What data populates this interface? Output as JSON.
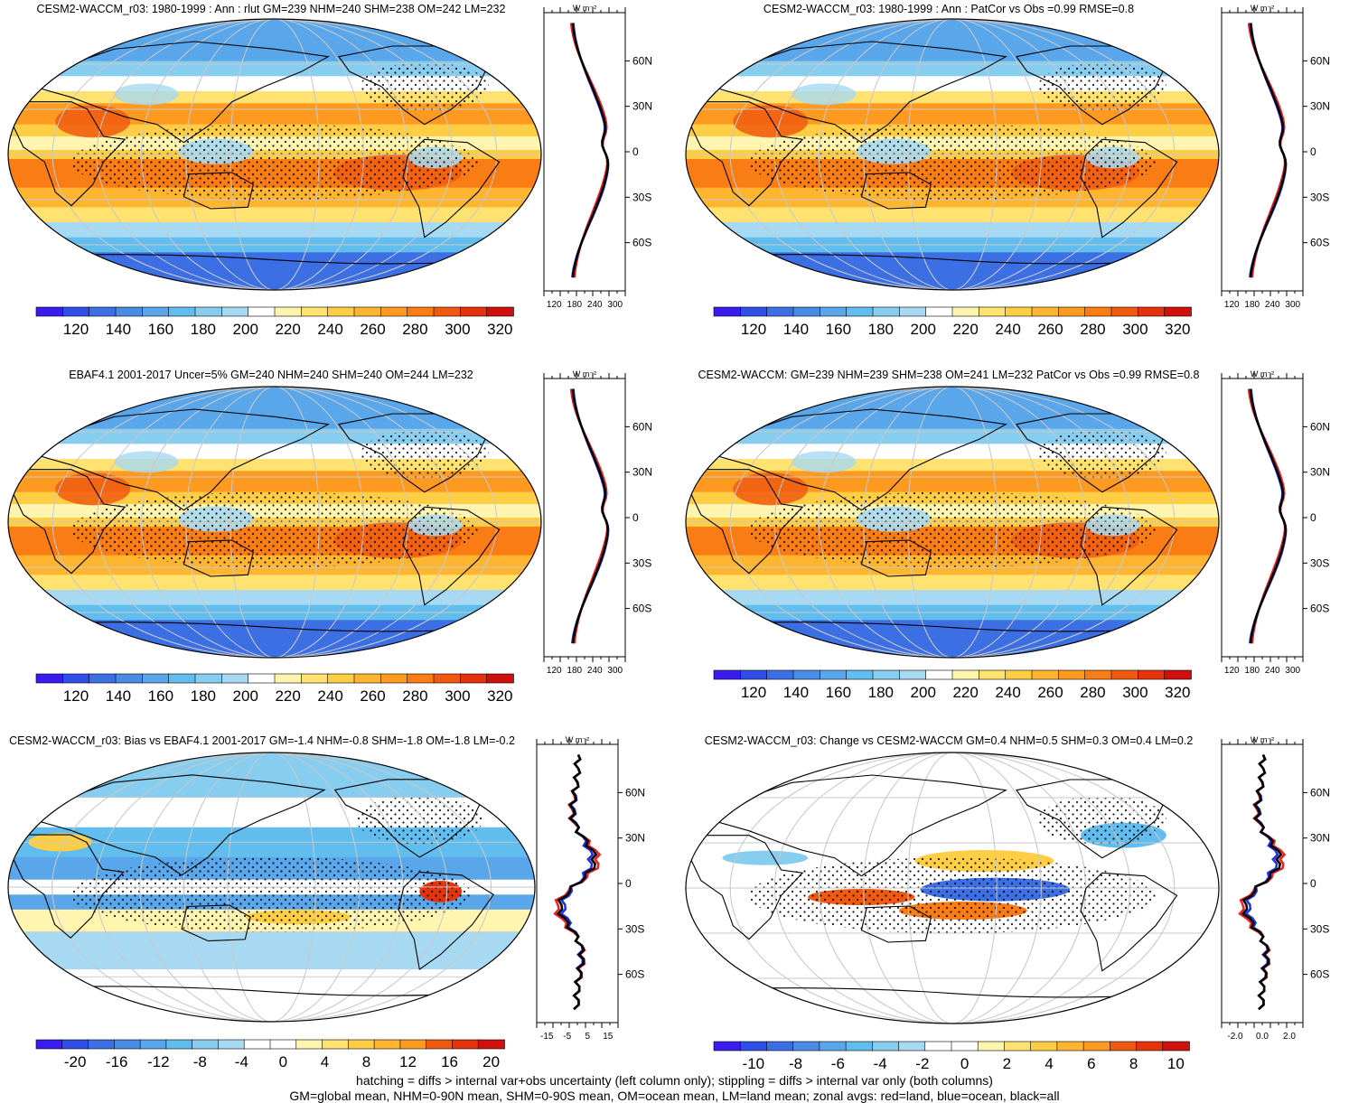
{
  "panels": [
    {
      "title": "CESM2-WACCM_r03: 1980-1999 : Ann : rlut GM=239 NHM=240 SHM=238 OM=242 LM=232",
      "colorbar_labels": [
        "120",
        "140",
        "160",
        "180",
        "200",
        "220",
        "240",
        "260",
        "280",
        "300",
        "320"
      ],
      "colorbar_type": "absolute",
      "zonal_ticks": [
        "120",
        "180",
        "240",
        "300"
      ],
      "zonal_unit": "W m⁻²",
      "lat_labels": [
        "60N",
        "30N",
        "0",
        "30S",
        "60S"
      ]
    },
    {
      "title": "CESM2-WACCM_r03: 1980-1999 : Ann : PatCor vs Obs =0.99 RMSE=0.8",
      "colorbar_labels": [
        "120",
        "140",
        "160",
        "180",
        "200",
        "220",
        "240",
        "260",
        "280",
        "300",
        "320"
      ],
      "colorbar_type": "absolute",
      "zonal_ticks": [
        "120",
        "180",
        "240",
        "300"
      ],
      "zonal_unit": "W m⁻²",
      "lat_labels": [
        "60N",
        "30N",
        "0",
        "30S",
        "60S"
      ]
    },
    {
      "title": "EBAF4.1 2001-2017 Uncer=5% GM=240 NHM=240 SHM=240 OM=244 LM=232",
      "colorbar_labels": [
        "120",
        "140",
        "160",
        "180",
        "200",
        "220",
        "240",
        "260",
        "280",
        "300",
        "320"
      ],
      "colorbar_type": "absolute",
      "zonal_ticks": [
        "120",
        "180",
        "240",
        "300"
      ],
      "zonal_unit": "W m⁻²",
      "lat_labels": [
        "60N",
        "30N",
        "0",
        "30S",
        "60S"
      ]
    },
    {
      "title": "CESM2-WACCM: GM=239 NHM=239 SHM=238 OM=241 LM=232 PatCor vs Obs =0.99 RMSE=0.8",
      "colorbar_labels": [
        "120",
        "140",
        "160",
        "180",
        "200",
        "220",
        "240",
        "260",
        "280",
        "300",
        "320"
      ],
      "colorbar_type": "absolute",
      "zonal_ticks": [
        "120",
        "180",
        "240",
        "300"
      ],
      "zonal_unit": "W m⁻²",
      "lat_labels": [
        "60N",
        "30N",
        "0",
        "30S",
        "60S"
      ]
    },
    {
      "title": "CESM2-WACCM_r03: Bias vs EBAF4.1 2001-2017 GM=-1.4 NHM=-0.8 SHM=-1.8 OM=-1.8 LM=-0.2",
      "colorbar_labels": [
        "-20",
        "-16",
        "-12",
        "-8",
        "-4",
        "0",
        "4",
        "8",
        "12",
        "16",
        "20"
      ],
      "colorbar_type": "diff",
      "zonal_ticks": [
        "-15",
        "-5",
        "5",
        "15"
      ],
      "zonal_unit": "W m⁻²",
      "lat_labels": [
        "60N",
        "30N",
        "0",
        "30S",
        "60S"
      ]
    },
    {
      "title": "CESM2-WACCM_r03: Change vs CESM2-WACCM GM=0.4 NHM=0.5 SHM=0.3 OM=0.4 LM=0.2",
      "colorbar_labels": [
        "-10",
        "-8",
        "-6",
        "-4",
        "-2",
        "0",
        "2",
        "4",
        "6",
        "8",
        "10"
      ],
      "colorbar_type": "diff",
      "zonal_ticks": [
        "-2.0",
        "0.0",
        "2.0"
      ],
      "zonal_unit": "W m⁻²",
      "lat_labels": [
        "60N",
        "30N",
        "0",
        "30S",
        "60S"
      ]
    }
  ],
  "colors": {
    "absolute_scale": [
      "#3a1cf0",
      "#2f4ee8",
      "#3d6fe4",
      "#4a8be6",
      "#5aa6ea",
      "#62bdef",
      "#86cdf0",
      "#a8d9f2",
      "#ffffff",
      "#fff5b0",
      "#ffe270",
      "#ffce45",
      "#ffb530",
      "#ff9a20",
      "#f97c15",
      "#f05a10",
      "#e4330d",
      "#d00f0f"
    ],
    "diff_scale": [
      "#3a1cf0",
      "#2f4ee8",
      "#3d6fe4",
      "#4a8be6",
      "#5aa6ea",
      "#62bdef",
      "#86cdf0",
      "#a8d9f2",
      "#ffffff",
      "#ffffff",
      "#fff5b0",
      "#ffe270",
      "#ffce45",
      "#ffb530",
      "#ff9a20",
      "#f05a10",
      "#e4330d",
      "#d00f0f"
    ],
    "zonal_land": "#ee2020",
    "zonal_ocean": "#2030e0",
    "zonal_all": "#000000"
  },
  "footer": {
    "line1": "hatching = diffs > internal var+obs uncertainty (left column only); stippling = diffs > internal var only (both columns)",
    "line2": "GM=global mean, NHM=0-90N mean, SHM=0-90S mean, OM=ocean mean, LM=land mean; zonal avgs: red=land, blue=ocean, black=all"
  }
}
